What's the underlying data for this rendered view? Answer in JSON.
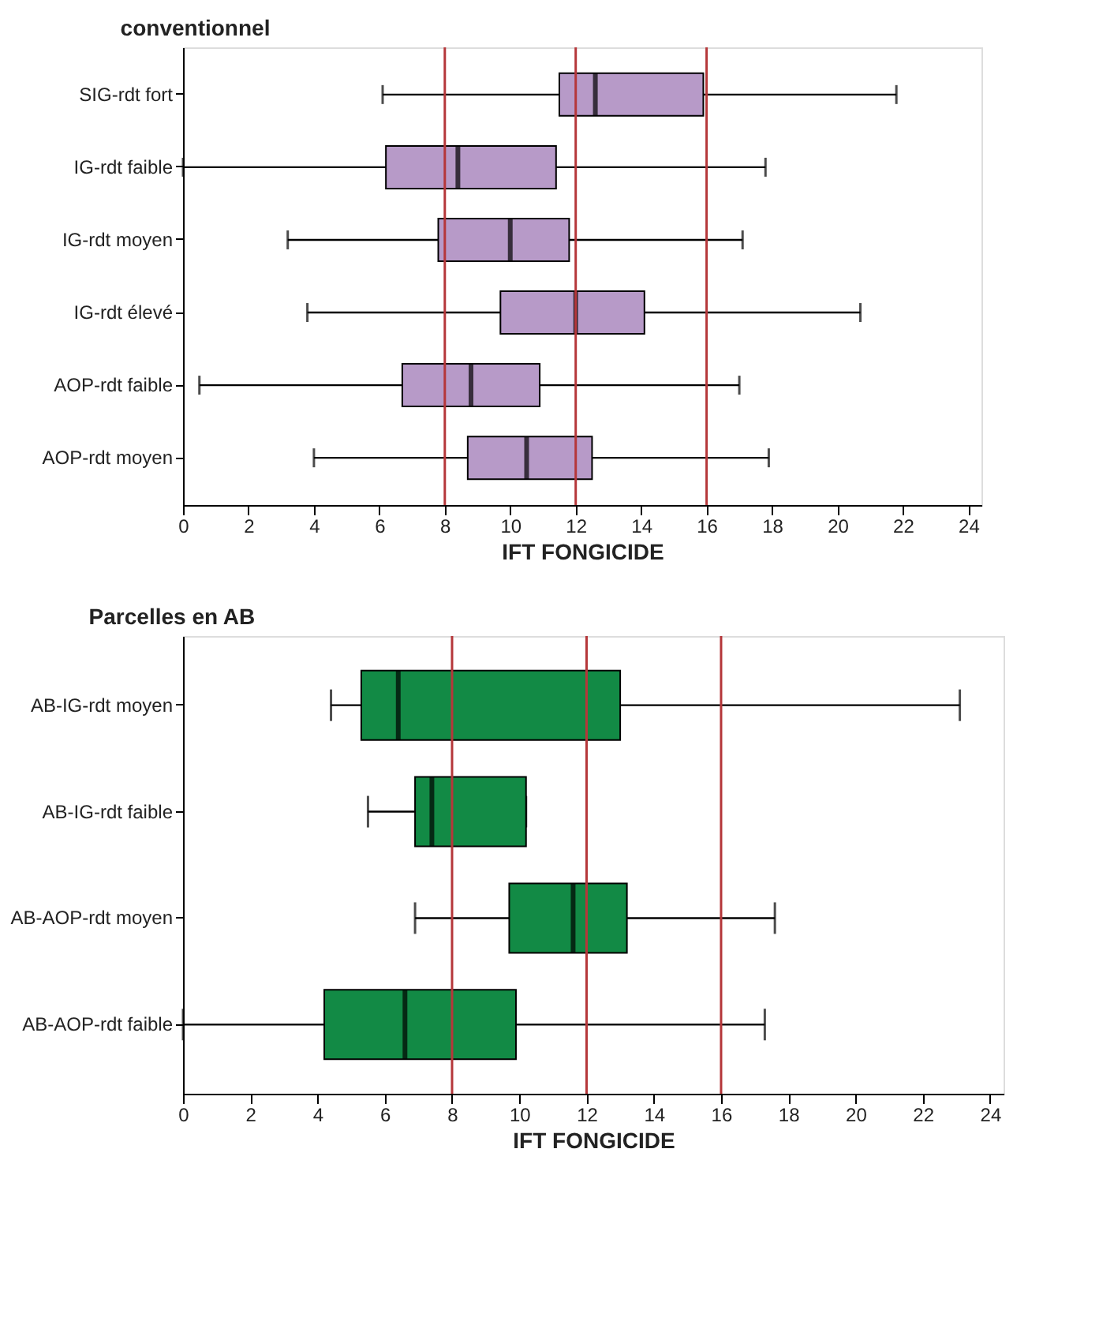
{
  "chart_data": [
    {
      "type": "box",
      "title": "conventionnel",
      "xlabel": "IFT FONGICIDE",
      "orientation": "horizontal",
      "categories": [
        "SIG-rdt fort",
        "IG-rdt faible",
        "IG-rdt moyen",
        "IG-rdt élevé",
        "AOP-rdt faible",
        "AOP-rdt moyen"
      ],
      "xlim": [
        0,
        24.4
      ],
      "xticks": [
        0,
        2,
        4,
        6,
        8,
        10,
        12,
        14,
        16,
        18,
        20,
        22,
        24
      ],
      "series": [
        {
          "color": "#b79ac8",
          "boxes": [
            {
              "low": 6.1,
              "q1": 11.5,
              "median": 12.6,
              "q3": 15.9,
              "high": 21.8
            },
            {
              "low": 0,
              "q1": 6.2,
              "median": 8.4,
              "q3": 11.4,
              "high": 17.8
            },
            {
              "low": 3.2,
              "q1": 7.8,
              "median": 10.0,
              "q3": 11.8,
              "high": 17.1
            },
            {
              "low": 3.8,
              "q1": 9.7,
              "median": 12.0,
              "q3": 14.1,
              "high": 20.7
            },
            {
              "low": 0.5,
              "q1": 6.7,
              "median": 8.8,
              "q3": 10.9,
              "high": 17.0
            },
            {
              "low": 4.0,
              "q1": 8.7,
              "median": 10.5,
              "q3": 12.5,
              "high": 17.9
            }
          ]
        }
      ],
      "ref_lines": [
        {
          "axis": "x",
          "value": 8,
          "color": "#b5373a"
        },
        {
          "axis": "x",
          "value": 12,
          "color": "#b5373a"
        },
        {
          "axis": "x",
          "value": 16,
          "color": "#b5373a"
        }
      ]
    },
    {
      "type": "box",
      "title": "Parcelles en AB",
      "xlabel": "IFT FONGICIDE",
      "orientation": "horizontal",
      "categories": [
        "AB-IG-rdt moyen",
        "AB-IG-rdt faible",
        "AB-AOP-rdt moyen",
        "AB-AOP-rdt faible"
      ],
      "xlim": [
        0,
        24.4
      ],
      "xticks": [
        0,
        2,
        4,
        6,
        8,
        10,
        12,
        14,
        16,
        18,
        20,
        22,
        24
      ],
      "series": [
        {
          "color": "#128a45",
          "boxes": [
            {
              "low": 4.4,
              "q1": 5.3,
              "median": 6.4,
              "q3": 13.0,
              "high": 23.1
            },
            {
              "low": 5.5,
              "q1": 6.9,
              "median": 7.4,
              "q3": 10.2,
              "high": 10.2
            },
            {
              "low": 6.9,
              "q1": 9.7,
              "median": 11.6,
              "q3": 13.2,
              "high": 17.6
            },
            {
              "low": 0,
              "q1": 4.2,
              "median": 6.6,
              "q3": 9.9,
              "high": 17.3
            }
          ]
        }
      ],
      "ref_lines": [
        {
          "axis": "x",
          "value": 8,
          "color": "#b5373a"
        },
        {
          "axis": "x",
          "value": 12,
          "color": "#b5373a"
        },
        {
          "axis": "x",
          "value": 16,
          "color": "#b5373a"
        }
      ]
    }
  ]
}
